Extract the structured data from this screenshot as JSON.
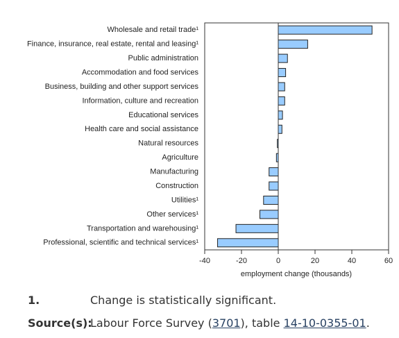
{
  "chart_data": {
    "type": "bar",
    "orientation": "horizontal",
    "categories": [
      "Wholesale and retail trade¹",
      "Finance, insurance, real estate, rental and leasing¹",
      "Public administration",
      "Accommodation and food services",
      "Business, building and other support services",
      "Information, culture and recreation",
      "Educational services",
      "Health care and social assistance",
      "Natural resources",
      "Agriculture",
      "Manufacturing",
      "Construction",
      "Utilities¹",
      "Other services¹",
      "Transportation and warehousing¹",
      "Professional, scientific and technical services¹"
    ],
    "values": [
      51,
      16,
      5,
      4,
      3.5,
      3.5,
      2.3,
      2,
      -0.5,
      -1,
      -5,
      -5,
      -8,
      -10,
      -23,
      -33
    ],
    "color": "#99ccff",
    "x_label": "employment change (thousands)",
    "xlim": [
      -40,
      60
    ],
    "xticks": [
      -40,
      -20,
      0,
      20,
      40,
      60
    ],
    "grid": false
  },
  "notes": {
    "footnote_number": "1.",
    "footnote_text": "Change is statistically significant.",
    "source_label": "Source(s):",
    "source_parts": [
      "Labour Force Survey (",
      "3701",
      "), table ",
      "14-10-0355-01",
      "."
    ]
  }
}
